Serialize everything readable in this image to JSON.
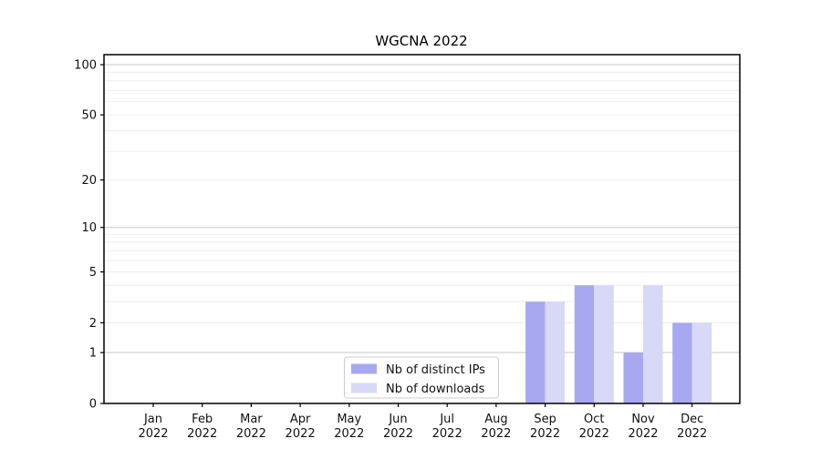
{
  "title": "WGCNA 2022",
  "colors": {
    "background": "#ffffff",
    "axis": "#000000",
    "grid_major": "#c9c9c9",
    "grid_minor": "#eeeeee",
    "tick_label": "#111111",
    "legend_border": "#cccccc",
    "series_ips": "#a8a8f0",
    "series_downloads": "#d8d8f7"
  },
  "chart_data": {
    "type": "bar",
    "title": "WGCNA 2022",
    "xlabel": "",
    "ylabel": "",
    "categories": [
      "Jan",
      "Feb",
      "Mar",
      "Apr",
      "May",
      "Jun",
      "Jul",
      "Aug",
      "Sep",
      "Oct",
      "Nov",
      "Dec"
    ],
    "category_year": "2022",
    "series": [
      {
        "name": "Nb of distinct IPs",
        "color": "#a8a8f0",
        "values": [
          0,
          0,
          0,
          0,
          0,
          0,
          0,
          0,
          3,
          4,
          1,
          2
        ]
      },
      {
        "name": "Nb of downloads",
        "color": "#d8d8f7",
        "values": [
          0,
          0,
          0,
          0,
          0,
          0,
          0,
          0,
          3,
          4,
          4,
          2
        ]
      }
    ],
    "yscale": "log1p",
    "ylim": [
      0,
      115
    ],
    "y_tick_labels": [
      0,
      1,
      2,
      5,
      10,
      20,
      50,
      100
    ],
    "y_gridlines_major": [
      1,
      10,
      100
    ],
    "y_gridlines_minor": [
      2,
      3,
      4,
      5,
      6,
      7,
      8,
      9,
      20,
      30,
      40,
      50,
      60,
      70,
      80,
      90
    ],
    "grid": "horizontal only",
    "legend": {
      "position": "inside lower center",
      "entries": [
        "Nb of distinct IPs",
        "Nb of downloads"
      ]
    }
  }
}
